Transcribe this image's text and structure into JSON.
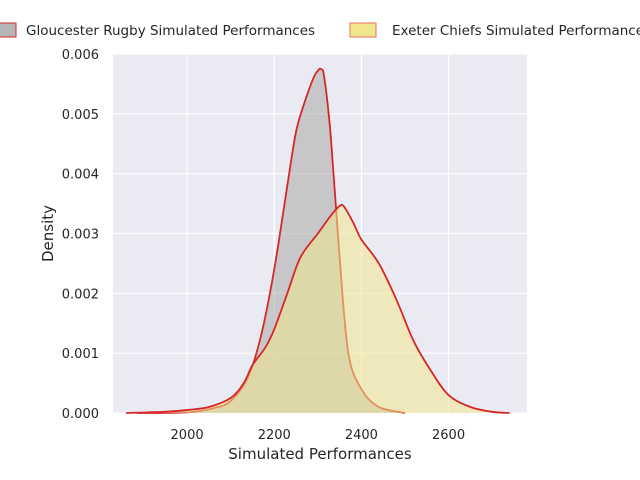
{
  "chart_data": {
    "type": "area",
    "xlabel": "Simulated Performances",
    "ylabel": "Density",
    "xlim": [
      1830,
      2780
    ],
    "ylim": [
      0,
      0.006
    ],
    "x_ticks": [
      2000,
      2200,
      2400,
      2600
    ],
    "x_tick_labels": [
      "2000",
      "2200",
      "2400",
      "2600"
    ],
    "y_ticks": [
      0,
      0.001,
      0.002,
      0.003,
      0.004,
      0.005,
      0.006
    ],
    "y_tick_labels": [
      "0.000",
      "0.001",
      "0.002",
      "0.003",
      "0.004",
      "0.005",
      "0.006"
    ],
    "grid": true,
    "legend_position": "top",
    "series": [
      {
        "name": "Gloucester Rugby Simulated Performances",
        "fill_color": "#a9a9a9",
        "line_color": "#d62728",
        "x": [
          1885,
          2000,
          2060,
          2100,
          2140,
          2170,
          2200,
          2230,
          2250,
          2270,
          2290,
          2300,
          2307,
          2315,
          2330,
          2350,
          2370,
          2400,
          2440,
          2500
        ],
        "y": [
          0,
          1e-05,
          8e-05,
          0.0002,
          0.0006,
          0.0013,
          0.0024,
          0.0038,
          0.0047,
          0.0052,
          0.0056,
          0.00572,
          0.00575,
          0.0056,
          0.0046,
          0.0026,
          0.001,
          0.0004,
          0.0001,
          0
        ]
      },
      {
        "name": "Exeter Chiefs Simulated Performances",
        "fill_color": "#f0e68c",
        "line_color": "#d62728",
        "x": [
          1860,
          1950,
          2000,
          2050,
          2100,
          2130,
          2150,
          2180,
          2200,
          2230,
          2260,
          2300,
          2330,
          2350,
          2360,
          2380,
          2400,
          2440,
          2480,
          2520,
          2560,
          2600,
          2650,
          2700,
          2740
        ],
        "y": [
          0,
          2e-05,
          5e-05,
          0.0001,
          0.00025,
          0.0005,
          0.0008,
          0.0011,
          0.0014,
          0.002,
          0.0026,
          0.003,
          0.0033,
          0.00346,
          0.00345,
          0.0032,
          0.0029,
          0.0025,
          0.0019,
          0.0012,
          0.0007,
          0.0003,
          0.0001,
          2e-05,
          0
        ]
      }
    ]
  }
}
